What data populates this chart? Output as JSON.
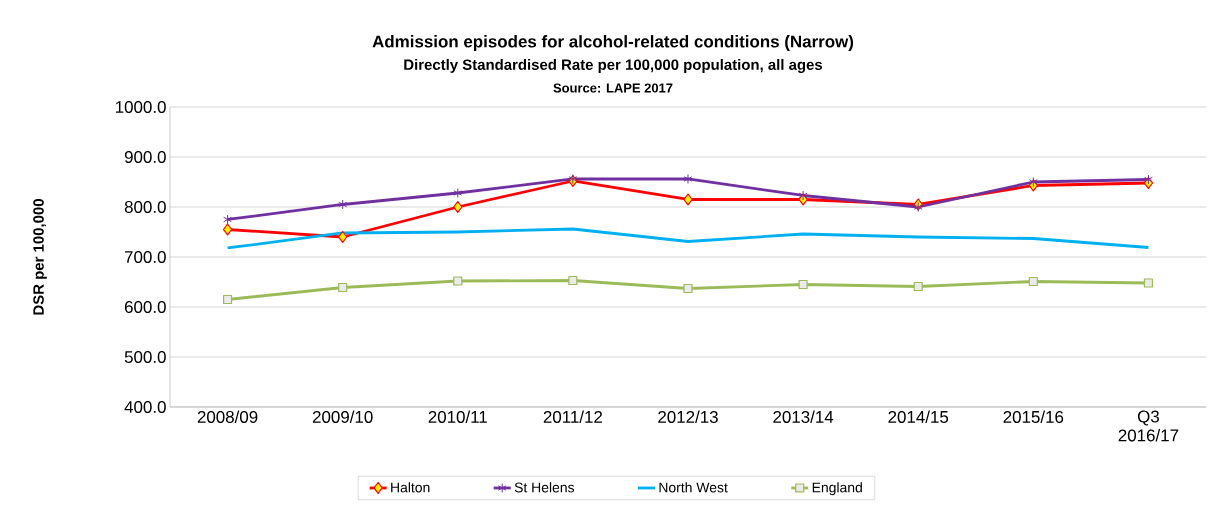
{
  "chart_data": {
    "type": "line",
    "title": "Admission episodes for alcohol-related conditions (Narrow)",
    "subtitle": "Directly Standardised Rate per 100,000 population, all ages",
    "annotations": [
      "Source: LAPE 2017"
    ],
    "ylabel": "DSR per 100,000",
    "categories": [
      "2008/09",
      "2009/10",
      "2010/11",
      "2011/12",
      "2012/13",
      "2013/14",
      "2014/15",
      "2015/16",
      "Q3 2016/17"
    ],
    "series": [
      {
        "name": "Halton",
        "color": "#ff0000",
        "marker": "diamond",
        "values": [
          755,
          740,
          800,
          852,
          815,
          815,
          805,
          843,
          848
        ]
      },
      {
        "name": "St Helens",
        "color": "#7030a0",
        "marker": "cross",
        "values": [
          775,
          805,
          828,
          856,
          856,
          823,
          800,
          850,
          855
        ]
      },
      {
        "name": "North West",
        "color": "#00b0f0",
        "marker": "none",
        "values": [
          718,
          748,
          750,
          756,
          731,
          746,
          740,
          737,
          719
        ]
      },
      {
        "name": "England",
        "color": "#9bbb59",
        "marker": "square",
        "values": [
          615,
          639,
          652,
          653,
          637,
          645,
          641,
          651,
          648
        ]
      }
    ],
    "ylim": [
      400,
      1000
    ],
    "yticks": [
      {
        "value": 400,
        "label": "400.0"
      },
      {
        "value": 500,
        "label": "500.0"
      },
      {
        "value": 600,
        "label": "600.0"
      },
      {
        "value": 700,
        "label": "700.0"
      },
      {
        "value": 800,
        "label": "800.0"
      },
      {
        "value": 900,
        "label": "900.0"
      },
      {
        "value": 1000,
        "label": "1000.0"
      }
    ],
    "grid": "y",
    "legend": "bottom",
    "line_style": "solid"
  }
}
